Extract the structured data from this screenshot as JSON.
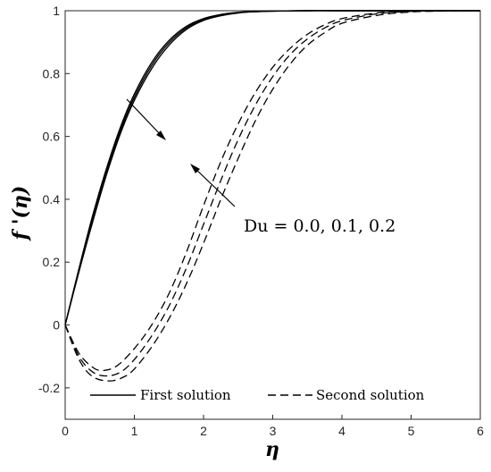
{
  "chart_data": {
    "type": "line",
    "xlabel": "η",
    "ylabel": "f '(η)",
    "xlim": [
      0,
      6
    ],
    "ylim": [
      -0.3,
      1
    ],
    "xticks": [
      "0",
      "1",
      "2",
      "3",
      "4",
      "5",
      "6"
    ],
    "yticks": [
      "-0.2",
      "0",
      "0.2",
      "0.4",
      "0.6",
      "0.8",
      "1"
    ],
    "grid": false,
    "legend_position": "bottom",
    "annotation": "Du = 0.0, 0.1, 0.2",
    "legend": [
      {
        "label": "First solution",
        "style": "solid"
      },
      {
        "label": "Second solution",
        "style": "dashed"
      }
    ],
    "series": [
      {
        "group": "First solution",
        "style": "solid",
        "x": [
          0,
          0.2,
          0.4,
          0.6,
          0.8,
          1.0,
          1.25,
          1.5,
          1.75,
          2.0,
          2.25,
          2.5,
          2.75,
          3.0,
          3.5,
          4.0,
          5.0,
          6.0
        ],
        "y": [
          0,
          0.18,
          0.35,
          0.5,
          0.63,
          0.735,
          0.835,
          0.905,
          0.95,
          0.975,
          0.988,
          0.995,
          0.998,
          0.999,
          1.0,
          1.0,
          1.0,
          1.0
        ]
      },
      {
        "group": "First solution",
        "style": "solid",
        "x": [
          0,
          0.2,
          0.4,
          0.6,
          0.8,
          1.0,
          1.25,
          1.5,
          1.75,
          2.0,
          2.25,
          2.5,
          2.75,
          3.0,
          3.5,
          4.0,
          5.0,
          6.0
        ],
        "y": [
          0,
          0.175,
          0.34,
          0.49,
          0.62,
          0.725,
          0.826,
          0.898,
          0.945,
          0.972,
          0.986,
          0.994,
          0.997,
          0.999,
          1.0,
          1.0,
          1.0,
          1.0
        ]
      },
      {
        "group": "First solution",
        "style": "solid",
        "x": [
          0,
          0.2,
          0.4,
          0.6,
          0.8,
          1.0,
          1.25,
          1.5,
          1.75,
          2.0,
          2.25,
          2.5,
          2.75,
          3.0,
          3.5,
          4.0,
          5.0,
          6.0
        ],
        "y": [
          0,
          0.17,
          0.33,
          0.48,
          0.61,
          0.715,
          0.816,
          0.89,
          0.94,
          0.969,
          0.984,
          0.993,
          0.997,
          0.999,
          1.0,
          1.0,
          1.0,
          1.0
        ]
      },
      {
        "group": "Second solution",
        "style": "dashed",
        "x": [
          0,
          0.2,
          0.4,
          0.55,
          0.75,
          1.0,
          1.25,
          1.5,
          1.75,
          2.0,
          2.25,
          2.5,
          2.75,
          3.0,
          3.25,
          3.5,
          3.75,
          4.0,
          4.5,
          5.0,
          5.5,
          6.0
        ],
        "y": [
          0,
          -0.09,
          -0.135,
          -0.145,
          -0.13,
          -0.075,
          0.0,
          0.1,
          0.23,
          0.38,
          0.52,
          0.64,
          0.74,
          0.82,
          0.88,
          0.925,
          0.955,
          0.975,
          0.993,
          0.999,
          1.0,
          1.0
        ]
      },
      {
        "group": "Second solution",
        "style": "dashed",
        "x": [
          0,
          0.2,
          0.4,
          0.6,
          0.8,
          1.0,
          1.25,
          1.5,
          1.75,
          2.0,
          2.25,
          2.5,
          2.75,
          3.0,
          3.25,
          3.5,
          3.75,
          4.0,
          4.5,
          5.0,
          5.5,
          6.0
        ],
        "y": [
          0,
          -0.1,
          -0.15,
          -0.162,
          -0.15,
          -0.11,
          -0.035,
          0.06,
          0.18,
          0.32,
          0.46,
          0.59,
          0.7,
          0.79,
          0.86,
          0.91,
          0.945,
          0.968,
          0.99,
          0.998,
          1.0,
          1.0
        ]
      },
      {
        "group": "Second solution",
        "style": "dashed",
        "x": [
          0,
          0.2,
          0.4,
          0.65,
          0.85,
          1.0,
          1.25,
          1.5,
          1.75,
          2.0,
          2.25,
          2.5,
          2.75,
          3.0,
          3.25,
          3.5,
          3.75,
          4.0,
          4.5,
          5.0,
          5.5,
          6.0
        ],
        "y": [
          0,
          -0.11,
          -0.165,
          -0.178,
          -0.165,
          -0.14,
          -0.07,
          0.02,
          0.13,
          0.26,
          0.4,
          0.53,
          0.65,
          0.75,
          0.83,
          0.89,
          0.93,
          0.96,
          0.985,
          0.996,
          0.999,
          1.0
        ]
      }
    ]
  }
}
